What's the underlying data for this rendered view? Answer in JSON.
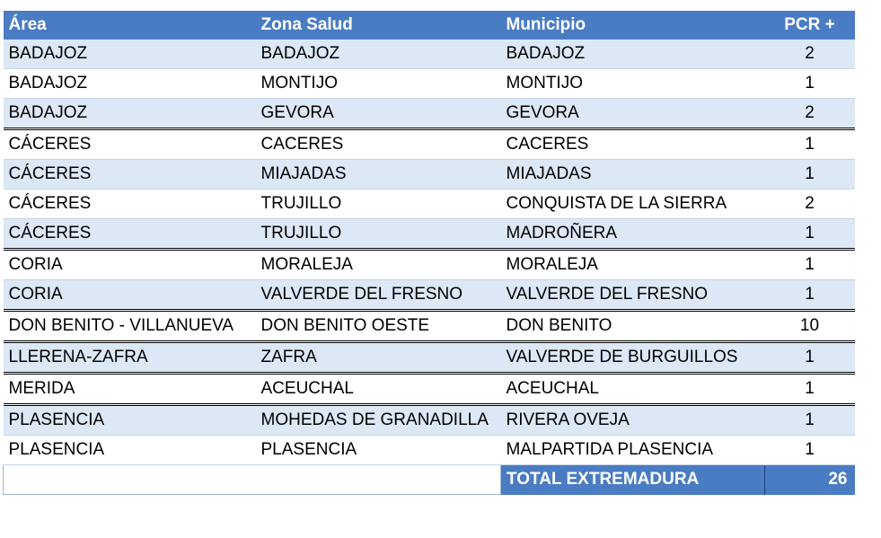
{
  "columns": [
    "Área",
    "Zona Salud",
    "Municipio",
    "PCR +"
  ],
  "rows": [
    {
      "area": "BADAJOZ",
      "zona": "BADAJOZ",
      "municipio": "BADAJOZ",
      "pcr": "2"
    },
    {
      "area": "BADAJOZ",
      "zona": "MONTIJO",
      "municipio": "MONTIJO",
      "pcr": "1"
    },
    {
      "area": "BADAJOZ",
      "zona": "GEVORA",
      "municipio": "GEVORA",
      "pcr": "2"
    },
    {
      "area": "CÁCERES",
      "zona": "CACERES",
      "municipio": "CACERES",
      "pcr": "1"
    },
    {
      "area": "CÁCERES",
      "zona": "MIAJADAS",
      "municipio": "MIAJADAS",
      "pcr": "1"
    },
    {
      "area": "CÁCERES",
      "zona": "TRUJILLO",
      "municipio": "CONQUISTA DE LA SIERRA",
      "pcr": "2"
    },
    {
      "area": "CÁCERES",
      "zona": "TRUJILLO",
      "municipio": "MADROÑERA",
      "pcr": "1"
    },
    {
      "area": "CORIA",
      "zona": "MORALEJA",
      "municipio": "MORALEJA",
      "pcr": "1"
    },
    {
      "area": "CORIA",
      "zona": "VALVERDE DEL FRESNO",
      "municipio": "VALVERDE DEL FRESNO",
      "pcr": "1"
    },
    {
      "area": "DON BENITO - VILLANUEVA",
      "zona": "DON BENITO OESTE",
      "municipio": "DON BENITO",
      "pcr": "10"
    },
    {
      "area": "LLERENA-ZAFRA",
      "zona": "ZAFRA",
      "municipio": "VALVERDE DE BURGUILLOS",
      "pcr": "1"
    },
    {
      "area": "MERIDA",
      "zona": "ACEUCHAL",
      "municipio": "ACEUCHAL",
      "pcr": "1"
    },
    {
      "area": "PLASENCIA",
      "zona": "MOHEDAS DE GRANADILLA",
      "municipio": "RIVERA OVEJA",
      "pcr": "1"
    },
    {
      "area": "PLASENCIA",
      "zona": "PLASENCIA",
      "municipio": "MALPARTIDA PLASENCIA",
      "pcr": "1"
    }
  ],
  "total": {
    "label": "TOTAL EXTREMADURA",
    "value": "26"
  },
  "colors": {
    "header": "#4a7cc4",
    "band": "#dce8f5"
  }
}
